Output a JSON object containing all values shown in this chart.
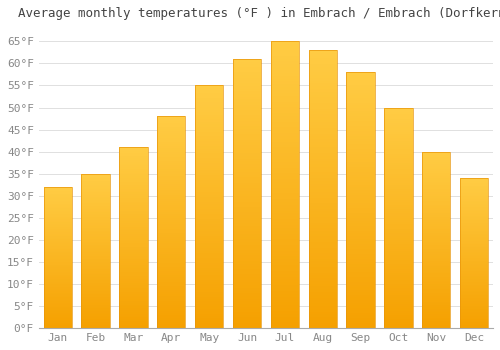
{
  "title": "Average monthly temperatures (°F ) in Embrach / Embrach (Dorfkern)",
  "months": [
    "Jan",
    "Feb",
    "Mar",
    "Apr",
    "May",
    "Jun",
    "Jul",
    "Aug",
    "Sep",
    "Oct",
    "Nov",
    "Dec"
  ],
  "values": [
    32,
    35,
    41,
    48,
    55,
    61,
    65,
    63,
    58,
    50,
    40,
    34
  ],
  "bar_color_top": "#FFCC44",
  "bar_color_bottom": "#F5A000",
  "background_color": "#FFFFFF",
  "grid_color": "#E0E0E0",
  "ylim": [
    0,
    68
  ],
  "yticks": [
    0,
    5,
    10,
    15,
    20,
    25,
    30,
    35,
    40,
    45,
    50,
    55,
    60,
    65
  ],
  "title_fontsize": 9,
  "tick_fontsize": 8,
  "title_color": "#444444",
  "tick_color": "#888888"
}
